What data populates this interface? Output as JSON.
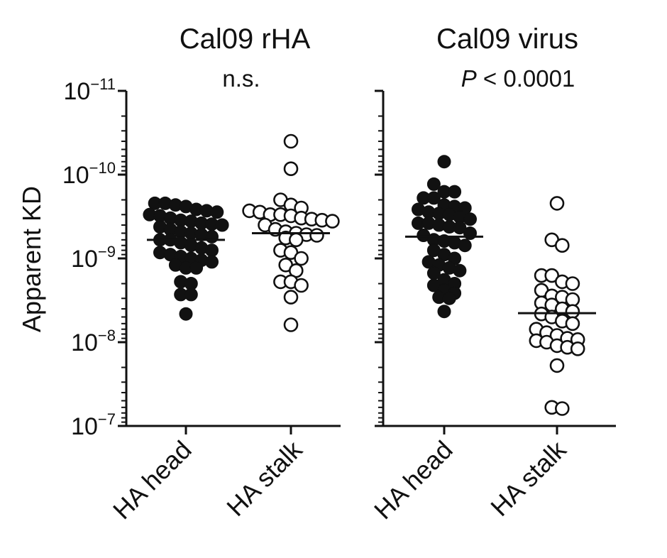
{
  "chart_data": [
    {
      "type": "scatter",
      "title": "Cal09 rHA",
      "stat_label": "n.s.",
      "ylabel": "Apparent KD",
      "yscale": "log",
      "ylim": [
        1e-07,
        1e-11
      ],
      "y_inverted": true,
      "y_tick_labels": [
        {
          "base": "10",
          "exp": "−11"
        },
        {
          "base": "10",
          "exp": "−10"
        },
        {
          "base": "10",
          "exp": "−9"
        },
        {
          "base": "10",
          "exp": "−8"
        },
        {
          "base": "10",
          "exp": "−7"
        }
      ],
      "categories": [
        "HA head",
        "HA stalk"
      ],
      "series": [
        {
          "category": "HA head",
          "marker": "filled",
          "median": 6e-10,
          "values": [
            2.2e-10,
            2.6e-10,
            2.7e-10,
            2.3e-10,
            2.4e-10,
            2.8e-10,
            2.2e-10,
            3e-10,
            3.1e-10,
            3.3e-10,
            3.5e-10,
            3.8e-10,
            3.6e-10,
            3.9e-10,
            4.2e-10,
            4.5e-10,
            4e-10,
            5e-10,
            4.8e-10,
            5.5e-10,
            5.2e-10,
            6e-10,
            6e-10,
            6.5e-10,
            7e-10,
            7.5e-10,
            8e-10,
            8.5e-10,
            9e-10,
            9.5e-10,
            1.05e-09,
            1e-09,
            1.1e-09,
            1.2e-09,
            1.3e-09,
            1.3e-09,
            1.9e-09,
            2e-09,
            2.7e-09,
            2.7e-09,
            4.6e-09
          ]
        },
        {
          "category": "HA stalk",
          "marker": "open",
          "median": 5e-10,
          "values": [
            4e-11,
            8.5e-11,
            2e-10,
            2.3e-10,
            2.5e-10,
            2.7e-10,
            2.8e-10,
            3e-10,
            3e-10,
            3.1e-10,
            3.3e-10,
            3.4e-10,
            3.5e-10,
            3.6e-10,
            4e-10,
            4.5e-10,
            4.8e-10,
            5e-10,
            5.3e-10,
            5.2e-10,
            5.7e-10,
            6e-10,
            8e-10,
            8.5e-10,
            1e-09,
            1.2e-09,
            1.4e-09,
            1.9e-09,
            1.9e-09,
            2.1e-09,
            2.9e-09,
            6.2e-09
          ]
        }
      ]
    },
    {
      "type": "scatter",
      "title": "Cal09 virus",
      "stat_label_italic": "P",
      "stat_label": " < 0.0001",
      "yscale": "log",
      "ylim": [
        1e-07,
        1e-11
      ],
      "y_inverted": true,
      "categories": [
        "HA head",
        "HA stalk"
      ],
      "series": [
        {
          "category": "HA head",
          "marker": "filled",
          "median": 5.5e-10,
          "values": [
            7e-11,
            1.3e-10,
            1.6e-10,
            1.6e-10,
            1.9e-10,
            1.9e-10,
            2.3e-10,
            2.5e-10,
            2.4e-10,
            2.6e-10,
            2.8e-10,
            2.9e-10,
            3e-10,
            3.2e-10,
            3.4e-10,
            3.8e-10,
            3.8e-10,
            4e-10,
            4.2e-10,
            4.3e-10,
            5e-10,
            5.3e-10,
            6e-10,
            6.2e-10,
            6.5e-10,
            7e-10,
            8e-10,
            9e-10,
            1e-09,
            1.1e-09,
            1.2e-09,
            1.3e-09,
            1.4e-09,
            1.5e-09,
            1.8e-09,
            2e-09,
            2.1e-09,
            2.4e-09,
            2.6e-09,
            2.9e-09,
            3e-09,
            4.3e-09
          ]
        },
        {
          "category": "HA stalk",
          "marker": "open",
          "median": 4.5e-09,
          "values": [
            2.2e-10,
            6e-10,
            7e-10,
            1.6e-09,
            1.6e-09,
            1.9e-09,
            2e-09,
            2.4e-09,
            2.8e-09,
            2.9e-09,
            3.1e-09,
            3.4e-09,
            3.6e-09,
            4e-09,
            4.3e-09,
            4.6e-09,
            5e-09,
            5.6e-09,
            6e-09,
            7e-09,
            7.7e-09,
            8.3e-09,
            9e-09,
            9.3e-09,
            9.6e-09,
            1e-08,
            1.1e-08,
            1.15e-08,
            1.2e-08,
            1.9e-08,
            6e-08,
            6.2e-08
          ]
        }
      ]
    }
  ]
}
